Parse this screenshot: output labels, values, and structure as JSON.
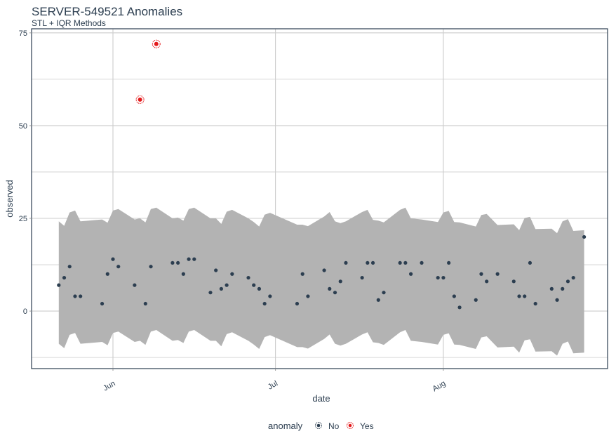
{
  "chart_data": {
    "type": "scatter",
    "title": "SERVER-549521 Anomalies",
    "subtitle": "STL + IQR Methods",
    "xlabel": "date",
    "ylabel": "observed",
    "x_ticks": [
      {
        "label": "Jun",
        "date": "06-01"
      },
      {
        "label": "Jul",
        "date": "07-01"
      },
      {
        "label": "Aug",
        "date": "08-01"
      }
    ],
    "y_ticks": [
      0,
      25,
      50,
      75
    ],
    "ylim": [
      -15.5,
      76.1
    ],
    "grid": true,
    "legend": {
      "title": "anomaly",
      "placement": "bottom",
      "entries": [
        "No",
        "Yes"
      ]
    },
    "colors": {
      "normal": "#2c3e50",
      "anomaly": "#e31a1c",
      "band": "#b3b3b3",
      "grid": "#cccccc"
    },
    "dates": [
      "05-22",
      "05-23",
      "05-24",
      "05-25",
      "05-26",
      "05-30",
      "05-31",
      "06-01",
      "06-02",
      "06-05",
      "06-06",
      "06-07",
      "06-08",
      "06-09",
      "06-12",
      "06-13",
      "06-14",
      "06-15",
      "06-16",
      "06-19",
      "06-20",
      "06-21",
      "06-22",
      "06-23",
      "06-26",
      "06-27",
      "06-28",
      "06-29",
      "06-30",
      "07-05",
      "07-06",
      "07-07",
      "07-10",
      "07-11",
      "07-12",
      "07-13",
      "07-14",
      "07-17",
      "07-18",
      "07-19",
      "07-20",
      "07-21",
      "07-24",
      "07-25",
      "07-26",
      "07-28",
      "07-31",
      "08-01",
      "08-02",
      "08-03",
      "08-04",
      "08-07",
      "08-08",
      "08-09",
      "08-11",
      "08-14",
      "08-15",
      "08-16",
      "08-17",
      "08-18",
      "08-21",
      "08-22",
      "08-23",
      "08-24",
      "08-25",
      "08-27"
    ],
    "observed": [
      7,
      9,
      12,
      4,
      4,
      2,
      10,
      14,
      12,
      7,
      57,
      2,
      12,
      72,
      13,
      13,
      10,
      14,
      14,
      5,
      11,
      6,
      7,
      10,
      9,
      7,
      6,
      2,
      4,
      2,
      10,
      4,
      11,
      6,
      5,
      8,
      13,
      9,
      13,
      13,
      3,
      5,
      13,
      13,
      10,
      13,
      9,
      9,
      13,
      4,
      1,
      3,
      10,
      8,
      10,
      8,
      4,
      4,
      13,
      2,
      6,
      3,
      6,
      8,
      9,
      20
    ],
    "anomaly": [
      "No",
      "No",
      "No",
      "No",
      "No",
      "No",
      "No",
      "No",
      "No",
      "No",
      "Yes",
      "No",
      "No",
      "Yes",
      "No",
      "No",
      "No",
      "No",
      "No",
      "No",
      "No",
      "No",
      "No",
      "No",
      "No",
      "No",
      "No",
      "No",
      "No",
      "No",
      "No",
      "No",
      "No",
      "No",
      "No",
      "No",
      "No",
      "No",
      "No",
      "No",
      "No",
      "No",
      "No",
      "No",
      "No",
      "No",
      "No",
      "No",
      "No",
      "No",
      "No",
      "No",
      "No",
      "No",
      "No",
      "No",
      "No",
      "No",
      "No",
      "No",
      "No",
      "No",
      "No",
      "No",
      "No",
      "No"
    ],
    "band_upper": [
      24.2,
      23,
      26.6,
      27.1,
      24.2,
      24.7,
      23.8,
      27.1,
      27.5,
      24.7,
      25,
      23.9,
      27.5,
      27.9,
      25,
      25.2,
      24.4,
      27.5,
      27.9,
      25,
      25,
      23.5,
      26.8,
      27.3,
      25,
      24,
      22.8,
      26,
      26.5,
      23.3,
      23.3,
      22.9,
      25.5,
      26.7,
      24.2,
      23.7,
      24.2,
      26.7,
      27.3,
      24.6,
      24.4,
      23.9,
      27.3,
      27.9,
      25,
      24.7,
      24,
      26.6,
      27,
      24,
      23.9,
      22.8,
      25.9,
      26.2,
      23.2,
      23.4,
      21.8,
      25.1,
      25.4,
      22.1,
      22.2,
      21,
      24.2,
      24.8,
      21.6,
      21.8
    ],
    "band_lower": [
      -8.8,
      -10,
      -6.4,
      -5.9,
      -8.8,
      -8.3,
      -9.2,
      -5.9,
      -5.5,
      -8.3,
      -8,
      -9.1,
      -5.5,
      -5.1,
      -8,
      -7.8,
      -8.6,
      -5.5,
      -5.1,
      -8,
      -8,
      -9.5,
      -6.2,
      -5.7,
      -8,
      -9,
      -10.2,
      -7,
      -6.5,
      -9.7,
      -9.7,
      -10.1,
      -7.5,
      -6.3,
      -8.8,
      -9.3,
      -8.8,
      -6.3,
      -5.7,
      -8.4,
      -8.6,
      -9.1,
      -5.7,
      -5.1,
      -8,
      -8.3,
      -9,
      -6.4,
      -6,
      -9,
      -9.1,
      -10.2,
      -7.1,
      -6.8,
      -9.8,
      -9.6,
      -11.2,
      -7.9,
      -7.6,
      -10.9,
      -10.8,
      -12,
      -8.8,
      -8.2,
      -11.4,
      -11.2
    ]
  }
}
